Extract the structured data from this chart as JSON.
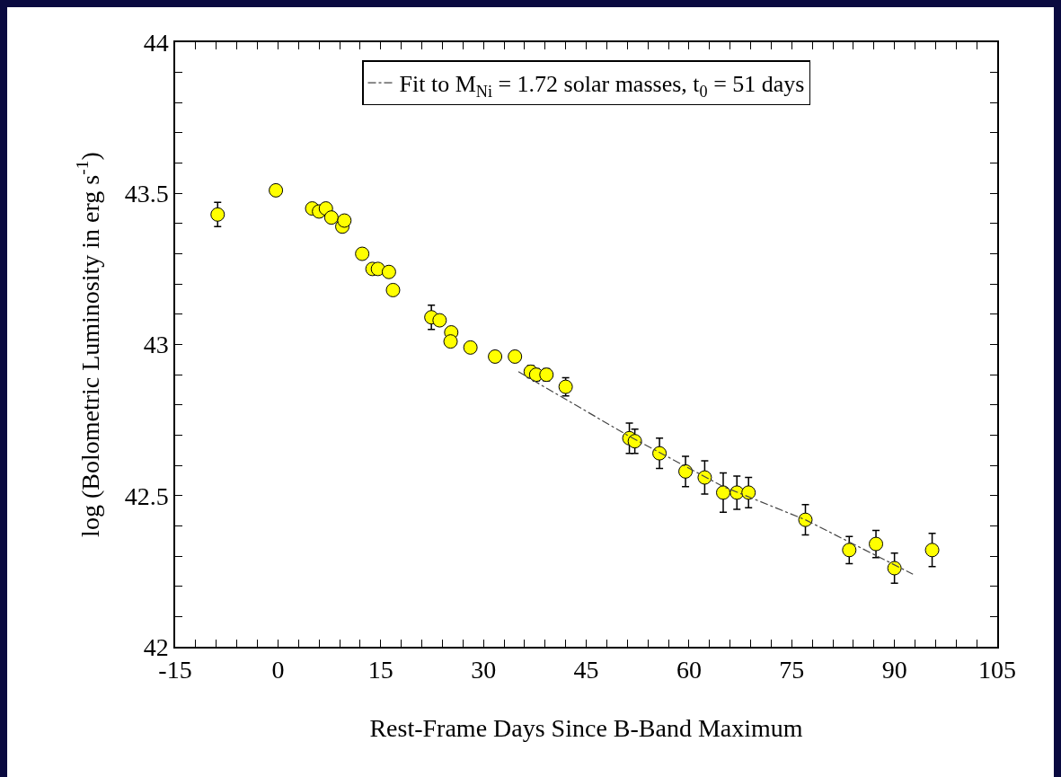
{
  "chart_data": {
    "type": "scatter",
    "xlabel": "Rest-Frame Days Since B-Band Maximum",
    "ylabel": "log (Bolometric Luminosity in erg s$^{-1}$)",
    "x": [
      -8.8,
      -0.3,
      5.0,
      6.0,
      7.0,
      7.8,
      9.4,
      9.7,
      12.3,
      13.8,
      14.6,
      16.2,
      16.8,
      22.4,
      23.6,
      25.3,
      25.2,
      28.1,
      31.7,
      34.6,
      36.9,
      37.7,
      39.2,
      42.0,
      51.3,
      52.1,
      55.7,
      59.5,
      62.3,
      65.0,
      67.0,
      68.7,
      77.0,
      83.4,
      87.3,
      90.0,
      95.5
    ],
    "series": [
      {
        "marker": "circle",
        "color": "#ffff00",
        "values": [
          43.43,
          43.51,
          43.45,
          43.44,
          43.45,
          43.42,
          43.39,
          43.41,
          43.3,
          43.25,
          43.25,
          43.24,
          43.18,
          43.09,
          43.08,
          43.04,
          43.01,
          42.99,
          42.96,
          42.96,
          42.91,
          42.9,
          42.9,
          42.86,
          42.69,
          42.68,
          42.64,
          42.58,
          42.56,
          42.51,
          42.51,
          42.51,
          42.42,
          42.32,
          42.34,
          42.26,
          42.32
        ],
        "errors": [
          0.04,
          null,
          null,
          null,
          null,
          null,
          null,
          null,
          null,
          null,
          null,
          null,
          null,
          0.04,
          null,
          null,
          null,
          null,
          null,
          null,
          0.02,
          0.02,
          0.02,
          0.03,
          0.05,
          0.04,
          0.05,
          0.05,
          0.055,
          0.065,
          0.055,
          0.05,
          0.05,
          0.045,
          0.045,
          0.05,
          0.055
        ]
      },
      {
        "type": "line",
        "name": "Fit to M$_{Ni}$ = 1.72 solar masses, t$_{0}$ = 51 days",
        "color": "#444444",
        "line_style": "dashdot",
        "x": [
          35.1,
          51,
          65,
          77,
          92.7
        ],
        "values": [
          42.91,
          42.7,
          42.53,
          42.42,
          42.24
        ]
      }
    ],
    "legend": "top",
    "grid": false,
    "xlim": [
      -15,
      105
    ],
    "ylim": [
      42,
      44
    ],
    "xticks": [
      -15,
      {
        "value": -12,
        "label": null
      },
      {
        "value": -9,
        "label": null
      },
      {
        "value": -6,
        "label": null
      },
      {
        "value": -3,
        "label": null
      },
      0,
      {
        "value": 3,
        "label": null
      },
      {
        "value": 6,
        "label": null
      },
      {
        "value": 9,
        "label": null
      },
      {
        "value": 12,
        "label": null
      },
      15,
      {
        "value": 18,
        "label": null
      },
      {
        "value": 21,
        "label": null
      },
      {
        "value": 24,
        "label": null
      },
      {
        "value": 27,
        "label": null
      },
      30,
      {
        "value": 33,
        "label": null
      },
      {
        "value": 36,
        "label": null
      },
      {
        "value": 39,
        "label": null
      },
      {
        "value": 42,
        "label": null
      },
      45,
      {
        "value": 48,
        "label": null
      },
      {
        "value": 51,
        "label": null
      },
      {
        "value": 54,
        "label": null
      },
      {
        "value": 57,
        "label": null
      },
      60,
      {
        "value": 63,
        "label": null
      },
      {
        "value": 66,
        "label": null
      },
      {
        "value": 69,
        "label": null
      },
      {
        "value": 72,
        "label": null
      },
      75,
      {
        "value": 78,
        "label": null
      },
      {
        "value": 81,
        "label": null
      },
      {
        "value": 84,
        "label": null
      },
      {
        "value": 87,
        "label": null
      },
      90,
      {
        "value": 93,
        "label": null
      },
      {
        "value": 96,
        "label": null
      },
      {
        "value": 99,
        "label": null
      },
      {
        "value": 102,
        "label": null
      },
      105
    ],
    "yticks": [
      42,
      {
        "value": 42.1,
        "label": null
      },
      {
        "value": 42.2,
        "label": null
      },
      {
        "value": 42.3,
        "label": null
      },
      {
        "value": 42.4,
        "label": null
      },
      42.5,
      {
        "value": 42.6,
        "label": null
      },
      {
        "value": 42.7,
        "label": null
      },
      {
        "value": 42.8,
        "label": null
      },
      {
        "value": 42.9,
        "label": null
      },
      43,
      {
        "value": 43.1,
        "label": null
      },
      {
        "value": 43.2,
        "label": null
      },
      {
        "value": 43.3,
        "label": null
      },
      {
        "value": 43.4,
        "label": null
      },
      43.5,
      {
        "value": 43.6,
        "label": null
      },
      {
        "value": 43.7,
        "label": null
      },
      {
        "value": 43.8,
        "label": null
      },
      {
        "value": 43.9,
        "label": null
      },
      44
    ]
  }
}
